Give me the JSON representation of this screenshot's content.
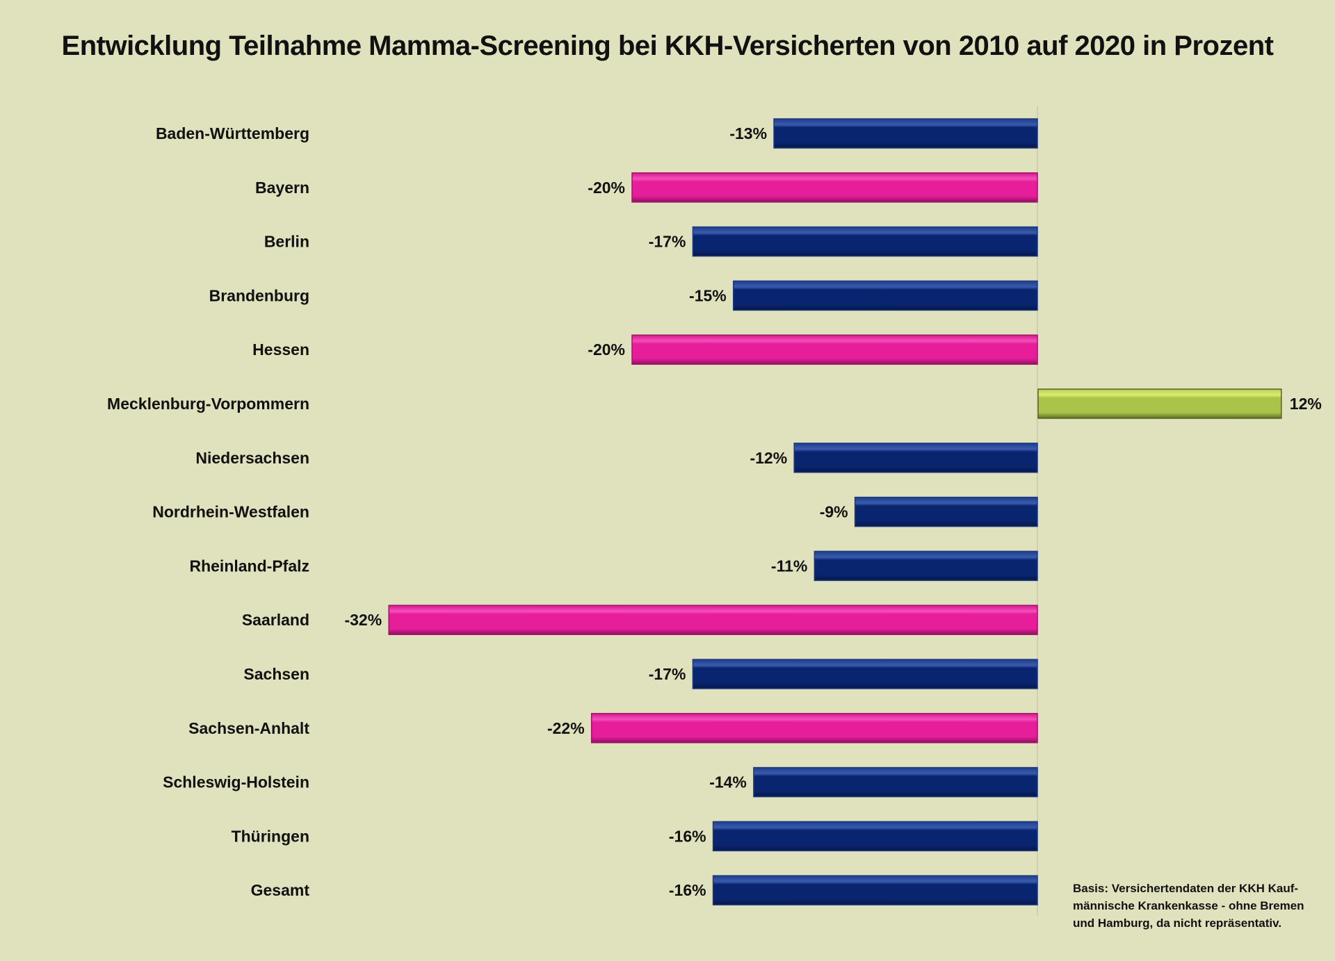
{
  "chart_data": {
    "type": "bar",
    "orientation": "horizontal",
    "title": "Entwicklung Teilnahme Mamma-Screening bei KKH-Versicherten von 2010 auf 2020 in Prozent",
    "xlabel": "",
    "ylabel": "",
    "unit": "%",
    "categories": [
      "Baden-Württemberg",
      "Bayern",
      "Berlin",
      "Brandenburg",
      "Hessen",
      "Mecklenburg-Vorpommern",
      "Niedersachsen",
      "Nordrhein-Westfalen",
      "Rheinland-Pfalz",
      "Saarland",
      "Sachsen",
      "Sachsen-Anhalt",
      "Schleswig-Holstein",
      "Thüringen",
      "Gesamt"
    ],
    "values": [
      -13,
      -20,
      -17,
      -15,
      -20,
      12,
      -12,
      -9,
      -11,
      -32,
      -17,
      -22,
      -14,
      -16,
      -16
    ],
    "value_labels": [
      "-13%",
      "-20%",
      "-17%",
      "-15%",
      "-20%",
      "12%",
      "-12%",
      "-9%",
      "-11%",
      "-32%",
      "-17%",
      "-22%",
      "-14%",
      "-16%",
      "-16%"
    ],
    "highlight": [
      "normal",
      "low",
      "normal",
      "normal",
      "low",
      "positive",
      "normal",
      "normal",
      "normal",
      "low",
      "normal",
      "low",
      "normal",
      "normal",
      "normal"
    ],
    "colors": {
      "normal": "#0a2570",
      "low": "#e61e9a",
      "positive": "#aac44a",
      "background": "#e0e1bd"
    },
    "xlim": [
      -32,
      12
    ],
    "grid": false,
    "legend": "none"
  },
  "footnote": [
    "Basis: Versichertendaten der KKH Kauf-",
    "männische Krankenkasse - ohne Bremen",
    "und Hamburg, da nicht repräsentativ."
  ]
}
